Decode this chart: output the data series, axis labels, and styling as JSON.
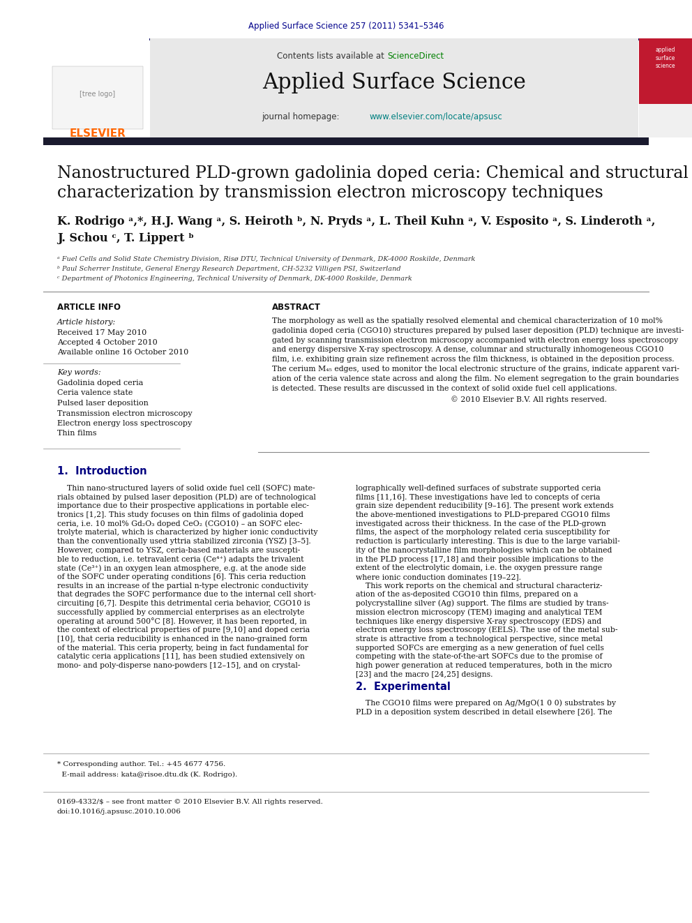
{
  "bg_color": "#ffffff",
  "header_journal_ref": "Applied Surface Science 257 (2011) 5341–5346",
  "header_journal_ref_color": "#00008B",
  "top_bar_color": "#1a1a6e",
  "header_bg_color": "#e8e8e8",
  "header_title": "Applied Surface Science",
  "header_sciencedirect_color": "#008000",
  "header_hp_color": "#008080",
  "article_info_title": "ARTICLE INFO",
  "abstract_title": "ABSTRACT",
  "article_history_label": "Article history:",
  "received": "Received 17 May 2010",
  "accepted": "Accepted 4 October 2010",
  "available": "Available online 16 October 2010",
  "keywords_label": "Key words:",
  "keywords": [
    "Gadolinia doped ceria",
    "Ceria valence state",
    "Pulsed laser deposition",
    "Transmission electron microscopy",
    "Electron energy loss spectroscopy",
    "Thin films"
  ],
  "copyright": "© 2010 Elsevier B.V. All rights reserved.",
  "affil_a": "ᵃ Fuel Cells and Solid State Chemistry Division, Risø DTU, Technical University of Denmark, DK-4000 Roskilde, Denmark",
  "affil_b": "ᵇ Paul Scherrer Institute, General Energy Research Department, CH-5232 Villigen PSI, Switzerland",
  "affil_c": "ᶜ Department of Photonics Engineering, Technical University of Denmark, DK-4000 Roskilde, Denmark",
  "intro_title": "1.  Introduction",
  "section2_title": "2.  Experimental",
  "elsevier_orange": "#FF6600",
  "section_header_color": "#000080",
  "author_line1": "K. Rodrigo ᵃ,*, H.J. Wang ᵃ, S. Heiroth ᵇ, N. Pryds ᵃ, L. Theil Kuhn ᵃ, V. Esposito ᵃ, S. Linderoth ᵃ,",
  "author_line2": "J. Schou ᶜ, T. Lippert ᵇ",
  "article_title_line1": "Nanostructured PLD-grown gadolinia doped ceria: Chemical and structural",
  "article_title_line2": "characterization by transmission electron microscopy techniques",
  "abstract_lines": [
    "The morphology as well as the spatially resolved elemental and chemical characterization of 10 mol%",
    "gadolinia doped ceria (CGO10) structures prepared by pulsed laser deposition (PLD) technique are investi-",
    "gated by scanning transmission electron microscopy accompanied with electron energy loss spectroscopy",
    "and energy dispersive X-ray spectroscopy. A dense, columnar and structurally inhomogeneous CGO10",
    "film, i.e. exhibiting grain size refinement across the film thickness, is obtained in the deposition process.",
    "The cerium M₄₅ edges, used to monitor the local electronic structure of the grains, indicate apparent vari-",
    "ation of the ceria valence state across and along the film. No element segregation to the grain boundaries",
    "is detected. These results are discussed in the context of solid oxide fuel cell applications."
  ],
  "intro1_lines": [
    "    Thin nano-structured layers of solid oxide fuel cell (SOFC) mate-",
    "rials obtained by pulsed laser deposition (PLD) are of technological",
    "importance due to their prospective applications in portable elec-",
    "tronics [1,2]. This study focuses on thin films of gadolinia doped",
    "ceria, i.e. 10 mol% Gd₂O₃ doped CeO₂ (CGO10) – an SOFC elec-",
    "trolyte material, which is characterized by higher ionic conductivity",
    "than the conventionally used yttria stabilized zirconia (YSZ) [3–5].",
    "However, compared to YSZ, ceria-based materials are suscepti-",
    "ble to reduction, i.e. tetravalent ceria (Ce⁴⁺) adapts the trivalent",
    "state (Ce³⁺) in an oxygen lean atmosphere, e.g. at the anode side",
    "of the SOFC under operating conditions [6]. This ceria reduction",
    "results in an increase of the partial n-type electronic conductivity",
    "that degrades the SOFC performance due to the internal cell short-",
    "circuiting [6,7]. Despite this detrimental ceria behavior, CGO10 is",
    "successfully applied by commercial enterprises as an electrolyte",
    "operating at around 500°C [8]. However, it has been reported, in",
    "the context of electrical properties of pure [9,10] and doped ceria",
    "[10], that ceria reducibility is enhanced in the nano-grained form",
    "of the material. This ceria property, being in fact fundamental for",
    "catalytic ceria applications [11], has been studied extensively on",
    "mono- and poly-disperse nano-powders [12–15], and on crystal-"
  ],
  "intro2_lines": [
    "lographically well-defined surfaces of substrate supported ceria",
    "films [11,16]. These investigations have led to concepts of ceria",
    "grain size dependent reducibility [9–16]. The present work extends",
    "the above-mentioned investigations to PLD-prepared CGO10 films",
    "investigated across their thickness. In the case of the PLD-grown",
    "films, the aspect of the morphology related ceria susceptibility for",
    "reduction is particularly interesting. This is due to the large variabil-",
    "ity of the nanocrystalline film morphologies which can be obtained",
    "in the PLD process [17,18] and their possible implications to the",
    "extent of the electrolytic domain, i.e. the oxygen pressure range",
    "where ionic conduction dominates [19–22].",
    "    This work reports on the chemical and structural characteriz-",
    "ation of the as-deposited CGO10 thin films, prepared on a",
    "polycrystalline silver (Ag) support. The films are studied by trans-",
    "mission electron microscopy (TEM) imaging and analytical TEM",
    "techniques like energy dispersive X-ray spectroscopy (EDS) and",
    "electron energy loss spectroscopy (EELS). The use of the metal sub-",
    "strate is attractive from a technological perspective, since metal",
    "supported SOFCs are emerging as a new generation of fuel cells",
    "competing with the state-of-the-art SOFCs due to the promise of",
    "high power generation at reduced temperatures, both in the micro",
    "[23] and the macro [24,25] designs."
  ],
  "section2_lines": [
    "    The CGO10 films were prepared on Ag/MgO(1 0 0) substrates by",
    "PLD in a deposition system described in detail elsewhere [26]. The"
  ],
  "footnote1": "* Corresponding author. Tel.: +45 4677 4756.",
  "footnote2": "  E-mail address: kata@risoe.dtu.dk (K. Rodrigo).",
  "issn1": "0169-4332/$ – see front matter © 2010 Elsevier B.V. All rights reserved.",
  "issn2": "doi:10.1016/j.apsusc.2010.10.006"
}
